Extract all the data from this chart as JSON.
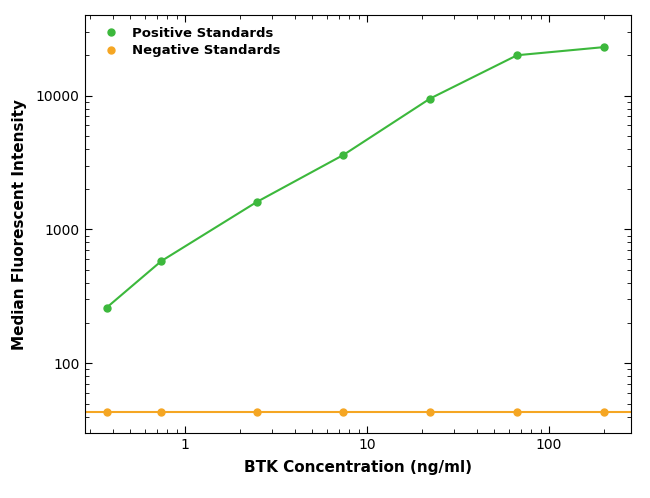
{
  "xlabel": "BTK Concentration (ng/ml)",
  "ylabel": "Median Fluorescent Intensity",
  "positive_x": [
    0.37,
    0.74,
    2.47,
    7.41,
    22.2,
    66.7,
    200
  ],
  "positive_y": [
    260,
    580,
    1600,
    3600,
    9500,
    20000,
    23000
  ],
  "negative_x": [
    0.37,
    0.74,
    2.47,
    7.41,
    22.2,
    66.7,
    200
  ],
  "negative_y": [
    43,
    43,
    43,
    43,
    43,
    43,
    43
  ],
  "positive_color": "#3cb83c",
  "negative_color": "#f5a623",
  "xlim_log": [
    0.28,
    280
  ],
  "ylim_log": [
    30,
    40000
  ],
  "background_color": "#ffffff",
  "legend_labels": [
    "Positive Standards",
    "Negative Standards"
  ],
  "marker_size": 5,
  "line_width": 1.5,
  "fit_p0": [
    1,
    2.0,
    20.0,
    24000
  ],
  "fit_xmin": 0.25,
  "fit_xmax": 280
}
